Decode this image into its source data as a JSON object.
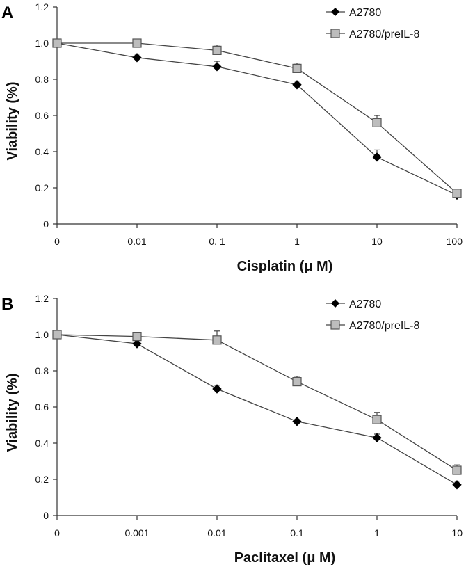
{
  "chart_data": [
    {
      "type": "line",
      "panel": "A",
      "xlabel": "Cisplatin (μ M)",
      "ylabel": "Viability (%)",
      "categories": [
        "0",
        "0.01",
        "0. 1",
        "1",
        "10",
        "100"
      ],
      "y_ticks": [
        "0",
        "0.2",
        "0.4",
        "0.6",
        "0.8",
        "1.0",
        "1.2"
      ],
      "ylim": [
        0,
        1.2
      ],
      "legend_position": "top-right",
      "series": [
        {
          "name": "A2780",
          "marker": "diamond",
          "color": "#000000",
          "values": [
            1.0,
            0.92,
            0.87,
            0.77,
            0.37,
            0.16
          ],
          "errors": [
            0.0,
            0.02,
            0.03,
            0.02,
            0.04,
            0.0
          ]
        },
        {
          "name": "A2780/preIL-8",
          "marker": "square",
          "color": "#bdbdbd",
          "values": [
            1.0,
            1.0,
            0.96,
            0.86,
            0.56,
            0.17
          ],
          "errors": [
            0.0,
            0.02,
            0.03,
            0.03,
            0.04,
            0.0
          ]
        }
      ]
    },
    {
      "type": "line",
      "panel": "B",
      "xlabel": "Paclitaxel (μ M)",
      "ylabel": "Viability (%)",
      "categories": [
        "0",
        "0.001",
        "0.01",
        "0.1",
        "1",
        "10"
      ],
      "y_ticks": [
        "0",
        "0.2",
        "0.4",
        "0.6",
        "0.8",
        "1.0",
        "1.2"
      ],
      "ylim": [
        0,
        1.2
      ],
      "legend_position": "top-right",
      "series": [
        {
          "name": "A2780",
          "marker": "diamond",
          "color": "#000000",
          "values": [
            1.0,
            0.95,
            0.7,
            0.52,
            0.43,
            0.17
          ],
          "errors": [
            0.0,
            0.0,
            0.02,
            0.01,
            0.02,
            0.02
          ]
        },
        {
          "name": "A2780/preIL-8",
          "marker": "square",
          "color": "#bdbdbd",
          "values": [
            1.0,
            0.99,
            0.97,
            0.74,
            0.53,
            0.25
          ],
          "errors": [
            0.0,
            0.02,
            0.05,
            0.03,
            0.04,
            0.03
          ]
        }
      ]
    }
  ]
}
